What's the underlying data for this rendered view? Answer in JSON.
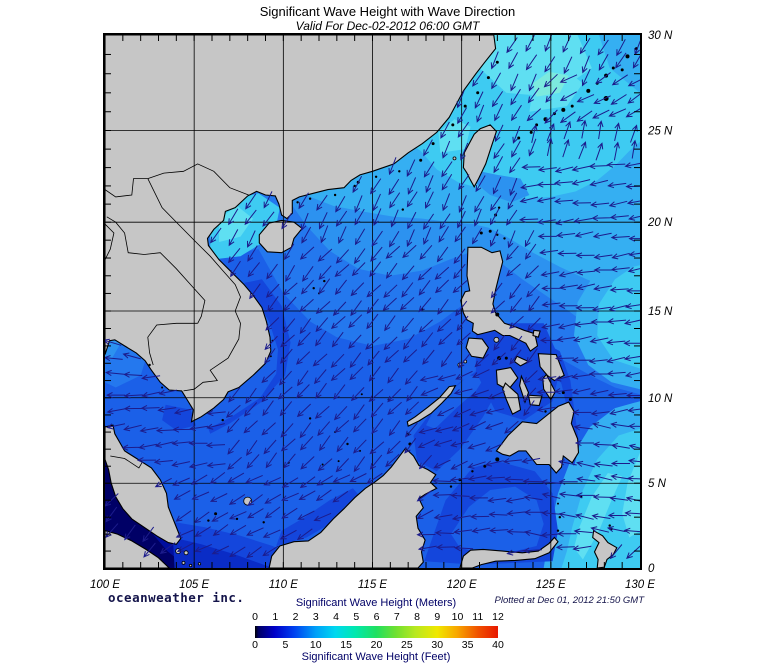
{
  "header": {
    "title": "Significant Wave Height with Wave Direction",
    "subtitle": "Valid For Dec-02-2012 06:00 GMT"
  },
  "credits": {
    "brand": "oceanweather inc.",
    "plotted": "Plotted at Dec 01, 2012 21:50 GMT"
  },
  "axes": {
    "lat_labels": [
      {
        "text": "30 N",
        "lat": 30
      },
      {
        "text": "25 N",
        "lat": 25
      },
      {
        "text": "20 N",
        "lat": 20
      },
      {
        "text": "15 N",
        "lat": 15
      },
      {
        "text": "10 N",
        "lat": 10
      },
      {
        "text": "5 N",
        "lat": 5
      },
      {
        "text": "0",
        "lat": 0
      }
    ],
    "lon_labels": [
      {
        "text": "100 E",
        "lon": 100
      },
      {
        "text": "105 E",
        "lon": 105
      },
      {
        "text": "110 E",
        "lon": 110
      },
      {
        "text": "115 E",
        "lon": 115
      },
      {
        "text": "120 E",
        "lon": 120
      },
      {
        "text": "125 E",
        "lon": 125
      },
      {
        "text": "130 E",
        "lon": 130
      }
    ]
  },
  "legend": {
    "meters_title": "Significant Wave Height (Meters)",
    "feet_title": "Significant Wave Height (Feet)",
    "meters_ticks": [
      "0",
      "1",
      "2",
      "3",
      "4",
      "5",
      "6",
      "7",
      "8",
      "9",
      "10",
      "11",
      "12"
    ],
    "feet_ticks": [
      "0",
      "5",
      "10",
      "15",
      "20",
      "25",
      "30",
      "35",
      "40"
    ],
    "gradient": [
      [
        "#000000",
        0
      ],
      [
        "#000066",
        1.5
      ],
      [
        "#0000c8",
        8
      ],
      [
        "#0040f0",
        16
      ],
      [
        "#00a0f8",
        25
      ],
      [
        "#00d8f0",
        33
      ],
      [
        "#00e8b0",
        41
      ],
      [
        "#20e060",
        50
      ],
      [
        "#70e030",
        58
      ],
      [
        "#b8e820",
        66
      ],
      [
        "#f0e800",
        75
      ],
      [
        "#f8a800",
        83
      ],
      [
        "#f05000",
        92
      ],
      [
        "#e81800",
        100
      ]
    ]
  },
  "wave_field": {
    "arrow_color": "#1c1c8c",
    "zones": [
      {
        "lon": [
          100,
          130
        ],
        "lat": [
          0,
          30
        ],
        "deg": 222
      },
      {
        "lon": [
          100,
          124
        ],
        "lat": [
          18.5,
          30
        ],
        "deg": 208
      },
      {
        "lon": [
          100,
          106.5
        ],
        "lat": [
          5.5,
          13.8
        ],
        "deg": 263
      },
      {
        "lon": [
          100,
          106.5
        ],
        "lat": [
          11.3,
          13.8
        ],
        "deg": 280
      },
      {
        "lon": [
          103,
          118
        ],
        "lat": [
          0,
          6
        ],
        "deg": 240
      },
      {
        "lon": [
          118,
          127
        ],
        "lat": [
          0,
          6.8
        ],
        "deg": 266
      },
      {
        "lon": [
          124,
          130
        ],
        "lat": [
          2,
          9
        ],
        "deg": 277
      },
      {
        "lon": [
          124.5,
          130
        ],
        "lat": [
          9,
          19.5
        ],
        "deg": 263
      },
      {
        "lon": [
          118,
          122.5
        ],
        "lat": [
          6,
          11.5
        ],
        "deg": 250
      },
      {
        "lon": [
          123,
          130
        ],
        "lat": [
          19.5,
          23.3
        ],
        "deg": 262
      },
      {
        "lon": [
          124,
          130
        ],
        "lat": [
          23.3,
          25.3
        ],
        "deg": 15
      },
      {
        "lon": [
          125.5,
          130
        ],
        "lat": [
          25.3,
          27.8
        ],
        "deg": 240
      },
      {
        "lon": [
          124,
          130
        ],
        "lat": [
          27.8,
          30
        ],
        "deg": 208
      },
      {
        "lon": [
          105.5,
          110.5
        ],
        "lat": [
          17,
          21.5
        ],
        "deg": 212
      }
    ]
  },
  "colors": {
    "land": "#c6c6c6",
    "coast": "#000000",
    "grid": "#000000",
    "ocean_palette": [
      "#000066",
      "#000e9e",
      "#0a2cc6",
      "#1446dc",
      "#1b60e8",
      "#2478ee",
      "#2c92f0",
      "#35aff2",
      "#3ecbf2",
      "#5fdff2",
      "#7ceade"
    ]
  }
}
